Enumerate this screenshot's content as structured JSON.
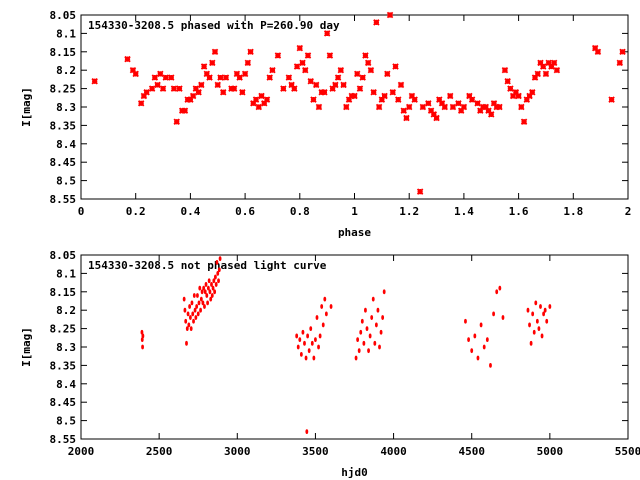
{
  "chart_data": [
    {
      "type": "scatter",
      "title": "154330-3208.5 phased with P=260.90 day",
      "xlabel": "phase",
      "ylabel": "I[mag]",
      "xlim": [
        0,
        2
      ],
      "ylim": [
        8.55,
        8.05
      ],
      "y_inverted": true,
      "x_ticks": [
        "0",
        "0.2",
        "0.4",
        "0.6",
        "0.8",
        "1",
        "1.2",
        "1.4",
        "1.6",
        "1.8",
        "2"
      ],
      "y_ticks": [
        "8.05",
        "8.1",
        "8.15",
        "8.2",
        "8.25",
        "8.3",
        "8.35",
        "8.4",
        "8.45",
        "8.5",
        "8.55"
      ],
      "marker": "star",
      "color": "#ff0000",
      "x": [
        0.05,
        0.17,
        0.19,
        0.2,
        0.22,
        0.23,
        0.24,
        0.26,
        0.27,
        0.28,
        0.29,
        0.3,
        0.31,
        0.33,
        0.34,
        0.35,
        0.36,
        0.37,
        0.38,
        0.39,
        0.4,
        0.41,
        0.42,
        0.43,
        0.44,
        0.45,
        0.46,
        0.47,
        0.48,
        0.49,
        0.5,
        0.51,
        0.52,
        0.53,
        0.55,
        0.56,
        0.57,
        0.58,
        0.59,
        0.6,
        0.61,
        0.62,
        0.63,
        0.64,
        0.65,
        0.66,
        0.67,
        0.68,
        0.69,
        0.7,
        0.72,
        0.74,
        0.76,
        0.77,
        0.78,
        0.79,
        0.8,
        0.81,
        0.82,
        0.83,
        0.84,
        0.85,
        0.86,
        0.87,
        0.88,
        0.89,
        0.9,
        0.91,
        0.92,
        0.93,
        0.94,
        0.95,
        0.96,
        0.97,
        0.98,
        0.99,
        1.0,
        1.01,
        1.02,
        1.03,
        1.04,
        1.05,
        1.06,
        1.07,
        1.08,
        1.09,
        1.1,
        1.11,
        1.12,
        1.13,
        1.14,
        1.15,
        1.16,
        1.17,
        1.18,
        1.19,
        1.2,
        1.21,
        1.22,
        1.24,
        1.25,
        1.27,
        1.28,
        1.29,
        1.3,
        1.31,
        1.32,
        1.33,
        1.35,
        1.36,
        1.38,
        1.39,
        1.4,
        1.42,
        1.43,
        1.45,
        1.46,
        1.47,
        1.48,
        1.49,
        1.5,
        1.51,
        1.52,
        1.53,
        1.55,
        1.56,
        1.57,
        1.58,
        1.59,
        1.6,
        1.61,
        1.62,
        1.63,
        1.64,
        1.65,
        1.66,
        1.67,
        1.68,
        1.69,
        1.7,
        1.71,
        1.72,
        1.73,
        1.74,
        1.88,
        1.89,
        1.94,
        1.97,
        1.98
      ],
      "y": [
        8.23,
        8.17,
        8.2,
        8.21,
        8.29,
        8.27,
        8.26,
        8.25,
        8.22,
        8.24,
        8.21,
        8.25,
        8.22,
        8.22,
        8.25,
        8.34,
        8.25,
        8.31,
        8.31,
        8.28,
        8.28,
        8.27,
        8.25,
        8.26,
        8.24,
        8.19,
        8.21,
        8.22,
        8.18,
        8.15,
        8.24,
        8.22,
        8.26,
        8.22,
        8.25,
        8.25,
        8.21,
        8.22,
        8.26,
        8.21,
        8.18,
        8.15,
        8.29,
        8.28,
        8.3,
        8.27,
        8.29,
        8.28,
        8.22,
        8.2,
        8.16,
        8.25,
        8.22,
        8.24,
        8.25,
        8.19,
        8.14,
        8.18,
        8.2,
        8.16,
        8.23,
        8.28,
        8.24,
        8.3,
        8.26,
        8.26,
        8.1,
        8.16,
        8.25,
        8.24,
        8.22,
        8.2,
        8.24,
        8.3,
        8.28,
        8.27,
        8.27,
        8.21,
        8.25,
        8.22,
        8.16,
        8.18,
        8.2,
        8.26,
        8.07,
        8.3,
        8.28,
        8.27,
        8.21,
        8.05,
        8.26,
        8.19,
        8.28,
        8.24,
        8.31,
        8.33,
        8.3,
        8.27,
        8.28,
        8.53,
        8.3,
        8.29,
        8.31,
        8.32,
        8.33,
        8.28,
        8.29,
        8.3,
        8.27,
        8.3,
        8.29,
        8.31,
        8.3,
        8.27,
        8.28,
        8.29,
        8.31,
        8.3,
        8.3,
        8.31,
        8.32,
        8.29,
        8.3,
        8.3,
        8.2,
        8.23,
        8.25,
        8.27,
        8.26,
        8.27,
        8.3,
        8.34,
        8.28,
        8.27,
        8.26,
        8.22,
        8.21,
        8.18,
        8.19,
        8.21,
        8.18,
        8.19,
        8.18,
        8.2,
        8.14,
        8.15,
        8.28,
        8.18,
        8.15
      ]
    },
    {
      "type": "scatter",
      "title": "154330-3208.5 not phased light curve",
      "xlabel": "hjd0",
      "ylabel": "I[mag]",
      "xlim": [
        2000,
        5500
      ],
      "ylim": [
        8.55,
        8.05
      ],
      "y_inverted": true,
      "x_ticks": [
        "2000",
        "2500",
        "3000",
        "3500",
        "4000",
        "4500",
        "5000",
        "5500"
      ],
      "y_ticks": [
        "8.05",
        "8.1",
        "8.15",
        "8.2",
        "8.25",
        "8.3",
        "8.35",
        "8.4",
        "8.45",
        "8.5",
        "8.55"
      ],
      "marker": "dot",
      "color": "#ff0000",
      "x": [
        2390,
        2392,
        2394,
        2396,
        2660,
        2665,
        2670,
        2675,
        2680,
        2685,
        2690,
        2695,
        2700,
        2705,
        2710,
        2715,
        2720,
        2725,
        2730,
        2735,
        2740,
        2745,
        2750,
        2755,
        2760,
        2765,
        2770,
        2775,
        2780,
        2785,
        2790,
        2795,
        2800,
        2805,
        2810,
        2815,
        2820,
        2825,
        2830,
        2835,
        2840,
        2845,
        2850,
        2855,
        2860,
        2865,
        2870,
        2875,
        2880,
        2885,
        2890,
        3380,
        3390,
        3400,
        3410,
        3420,
        3430,
        3440,
        3445,
        3450,
        3460,
        3470,
        3480,
        3490,
        3500,
        3510,
        3520,
        3530,
        3540,
        3550,
        3560,
        3570,
        3600,
        3760,
        3770,
        3780,
        3790,
        3800,
        3810,
        3820,
        3830,
        3840,
        3850,
        3860,
        3870,
        3880,
        3890,
        3900,
        3910,
        3920,
        3930,
        3940,
        4460,
        4480,
        4500,
        4520,
        4540,
        4560,
        4580,
        4600,
        4620,
        4640,
        4660,
        4680,
        4700,
        4860,
        4870,
        4880,
        4890,
        4900,
        4910,
        4920,
        4930,
        4940,
        4950,
        4960,
        4970,
        4980,
        5000
      ],
      "y": [
        8.26,
        8.28,
        8.3,
        8.27,
        8.17,
        8.2,
        8.23,
        8.29,
        8.25,
        8.21,
        8.24,
        8.19,
        8.22,
        8.25,
        8.18,
        8.21,
        8.23,
        8.16,
        8.2,
        8.22,
        8.19,
        8.16,
        8.21,
        8.18,
        8.14,
        8.2,
        8.17,
        8.15,
        8.18,
        8.14,
        8.19,
        8.15,
        8.13,
        8.16,
        8.18,
        8.14,
        8.12,
        8.15,
        8.17,
        8.13,
        8.16,
        8.14,
        8.12,
        8.15,
        8.11,
        8.13,
        8.07,
        8.1,
        8.12,
        8.09,
        8.06,
        8.27,
        8.3,
        8.28,
        8.32,
        8.26,
        8.29,
        8.33,
        8.53,
        8.27,
        8.31,
        8.25,
        8.29,
        8.33,
        8.28,
        8.22,
        8.3,
        8.27,
        8.19,
        8.24,
        8.17,
        8.21,
        8.19,
        8.33,
        8.28,
        8.31,
        8.26,
        8.23,
        8.29,
        8.2,
        8.25,
        8.31,
        8.27,
        8.22,
        8.17,
        8.29,
        8.24,
        8.2,
        8.3,
        8.26,
        8.22,
        8.15,
        8.23,
        8.28,
        8.31,
        8.27,
        8.33,
        8.24,
        8.3,
        8.28,
        8.35,
        8.21,
        8.15,
        8.14,
        8.22,
        8.2,
        8.24,
        8.29,
        8.21,
        8.26,
        8.18,
        8.23,
        8.25,
        8.19,
        8.27,
        8.21,
        8.2,
        8.23,
        8.19
      ]
    }
  ]
}
